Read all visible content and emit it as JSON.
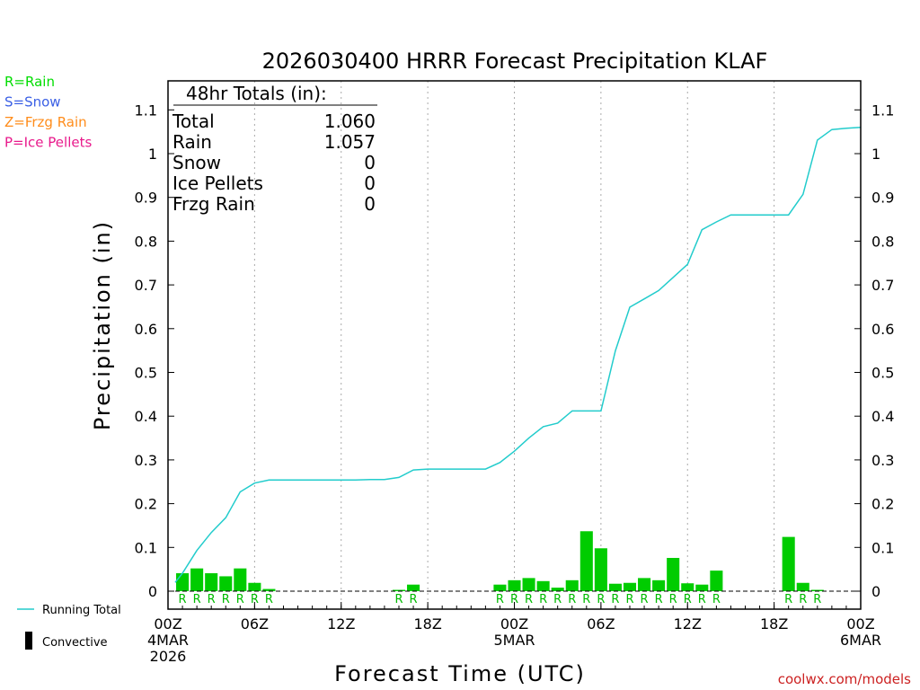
{
  "chart_data": {
    "type": "bar",
    "title": "2026030400 HRRR Forecast Precipitation KLAF",
    "xlabel": "Forecast Time (UTC)",
    "ylabel": "Precipitation (in)",
    "ylim": [
      0,
      1.15
    ],
    "xlim_hours": [
      0,
      48
    ],
    "y_ticks": [
      "0",
      "0.1",
      "0.2",
      "0.3",
      "0.4",
      "0.5",
      "0.6",
      "0.7",
      "0.8",
      "0.9",
      "1",
      "1.1"
    ],
    "x_ticks": [
      {
        "hour": 0,
        "lines": [
          "00Z",
          "4MAR",
          "2026"
        ]
      },
      {
        "hour": 6,
        "lines": [
          "06Z"
        ]
      },
      {
        "hour": 12,
        "lines": [
          "12Z"
        ]
      },
      {
        "hour": 18,
        "lines": [
          "18Z"
        ]
      },
      {
        "hour": 24,
        "lines": [
          "00Z",
          "5MAR"
        ]
      },
      {
        "hour": 30,
        "lines": [
          "06Z"
        ]
      },
      {
        "hour": 36,
        "lines": [
          "12Z"
        ]
      },
      {
        "hour": 42,
        "lines": [
          "18Z"
        ]
      },
      {
        "hour": 48,
        "lines": [
          "00Z",
          "6MAR"
        ]
      }
    ],
    "hourly_precip": {
      "hours": [
        1,
        2,
        3,
        4,
        5,
        6,
        7,
        16,
        17,
        23,
        24,
        25,
        26,
        27,
        28,
        29,
        30,
        31,
        32,
        33,
        34,
        35,
        36,
        37,
        38,
        43,
        44,
        45
      ],
      "values": [
        0.041,
        0.052,
        0.041,
        0.034,
        0.052,
        0.019,
        0.005,
        0.003,
        0.015,
        0.015,
        0.025,
        0.03,
        0.023,
        0.008,
        0.025,
        0.137,
        0.098,
        0.017,
        0.019,
        0.03,
        0.025,
        0.076,
        0.018,
        0.015,
        0.047,
        0.124,
        0.019,
        0.003
      ],
      "types": [
        "R",
        "R",
        "R",
        "R",
        "R",
        "R",
        "R",
        "R",
        "R",
        "R",
        "R",
        "R",
        "R",
        "R",
        "R",
        "R",
        "R",
        "R",
        "R",
        "R",
        "R",
        "R",
        "R",
        "R",
        "R",
        "R",
        "R",
        "R"
      ]
    },
    "running_total": {
      "name": "Running Total",
      "hours": [
        0.5,
        1,
        2,
        3,
        4,
        5,
        6,
        7,
        8,
        9,
        10,
        11,
        12,
        13,
        14,
        15,
        16,
        17,
        18,
        19,
        20,
        21,
        22,
        23,
        24,
        25,
        26,
        27,
        28,
        29,
        30,
        31,
        32,
        33,
        34,
        35,
        36,
        37,
        38,
        39,
        40,
        41,
        42,
        43,
        44,
        45,
        46,
        47,
        48
      ],
      "values": [
        0.02,
        0.041,
        0.093,
        0.134,
        0.168,
        0.227,
        0.247,
        0.254,
        0.254,
        0.254,
        0.254,
        0.254,
        0.254,
        0.254,
        0.255,
        0.255,
        0.26,
        0.277,
        0.279,
        0.279,
        0.279,
        0.279,
        0.279,
        0.294,
        0.32,
        0.35,
        0.376,
        0.384,
        0.412,
        0.412,
        0.412,
        0.549,
        0.649,
        0.668,
        0.687,
        0.717,
        0.747,
        0.826,
        0.844,
        0.86,
        0.86,
        0.86,
        0.86,
        0.86,
        0.907,
        1.031,
        1.055,
        1.058,
        1.06
      ]
    },
    "legend_left": [
      {
        "label": "R=Rain",
        "color": "#00dd00"
      },
      {
        "label": "S=Snow",
        "color": "#3a5fe5"
      },
      {
        "label": "Z=Frzg Rain",
        "color": "#ff8c1a"
      },
      {
        "label": "P=Ice Pellets",
        "color": "#e8198b"
      }
    ],
    "legend_bottom": {
      "line_label": "Running Total",
      "bar_label": "Convective"
    },
    "totals_box": {
      "heading": "48hr Totals (in):",
      "rows": [
        {
          "label": "Total",
          "value": "1.060"
        },
        {
          "label": "Rain",
          "value": "1.057"
        },
        {
          "label": "Snow",
          "value": "0"
        },
        {
          "label": "Ice Pellets",
          "value": "0"
        },
        {
          "label": "Frzg Rain",
          "value": "0"
        }
      ]
    },
    "colors": {
      "bar": "#00cc00",
      "line": "#22cccc",
      "rain_letter": "#00bb00",
      "grid": "#aaaaaa",
      "axis": "#000000"
    }
  },
  "credit": "coolwx.com/models"
}
